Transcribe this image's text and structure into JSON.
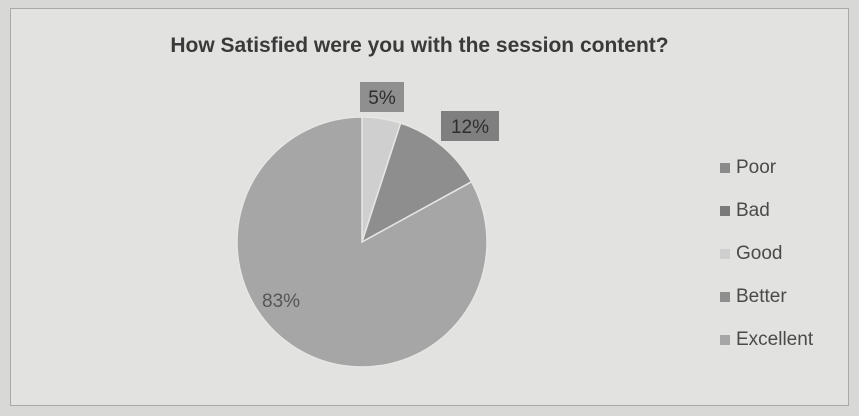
{
  "chart_data": {
    "type": "pie",
    "title": "How Satisfied were you with the session content?",
    "slices": [
      {
        "name": "Poor",
        "value": 0,
        "label": "",
        "color": "#8a8a8a"
      },
      {
        "name": "Bad",
        "value": 0,
        "label": "",
        "color": "#7a7a7a"
      },
      {
        "name": "Good",
        "value": 5,
        "label": "5%",
        "color": "#cfcfcf"
      },
      {
        "name": "Better",
        "value": 12,
        "label": "12%",
        "color": "#8e8e8e"
      },
      {
        "name": "Excellent",
        "value": 83,
        "label": "83%",
        "color": "#a6a6a6"
      }
    ],
    "legend_position": "right"
  }
}
